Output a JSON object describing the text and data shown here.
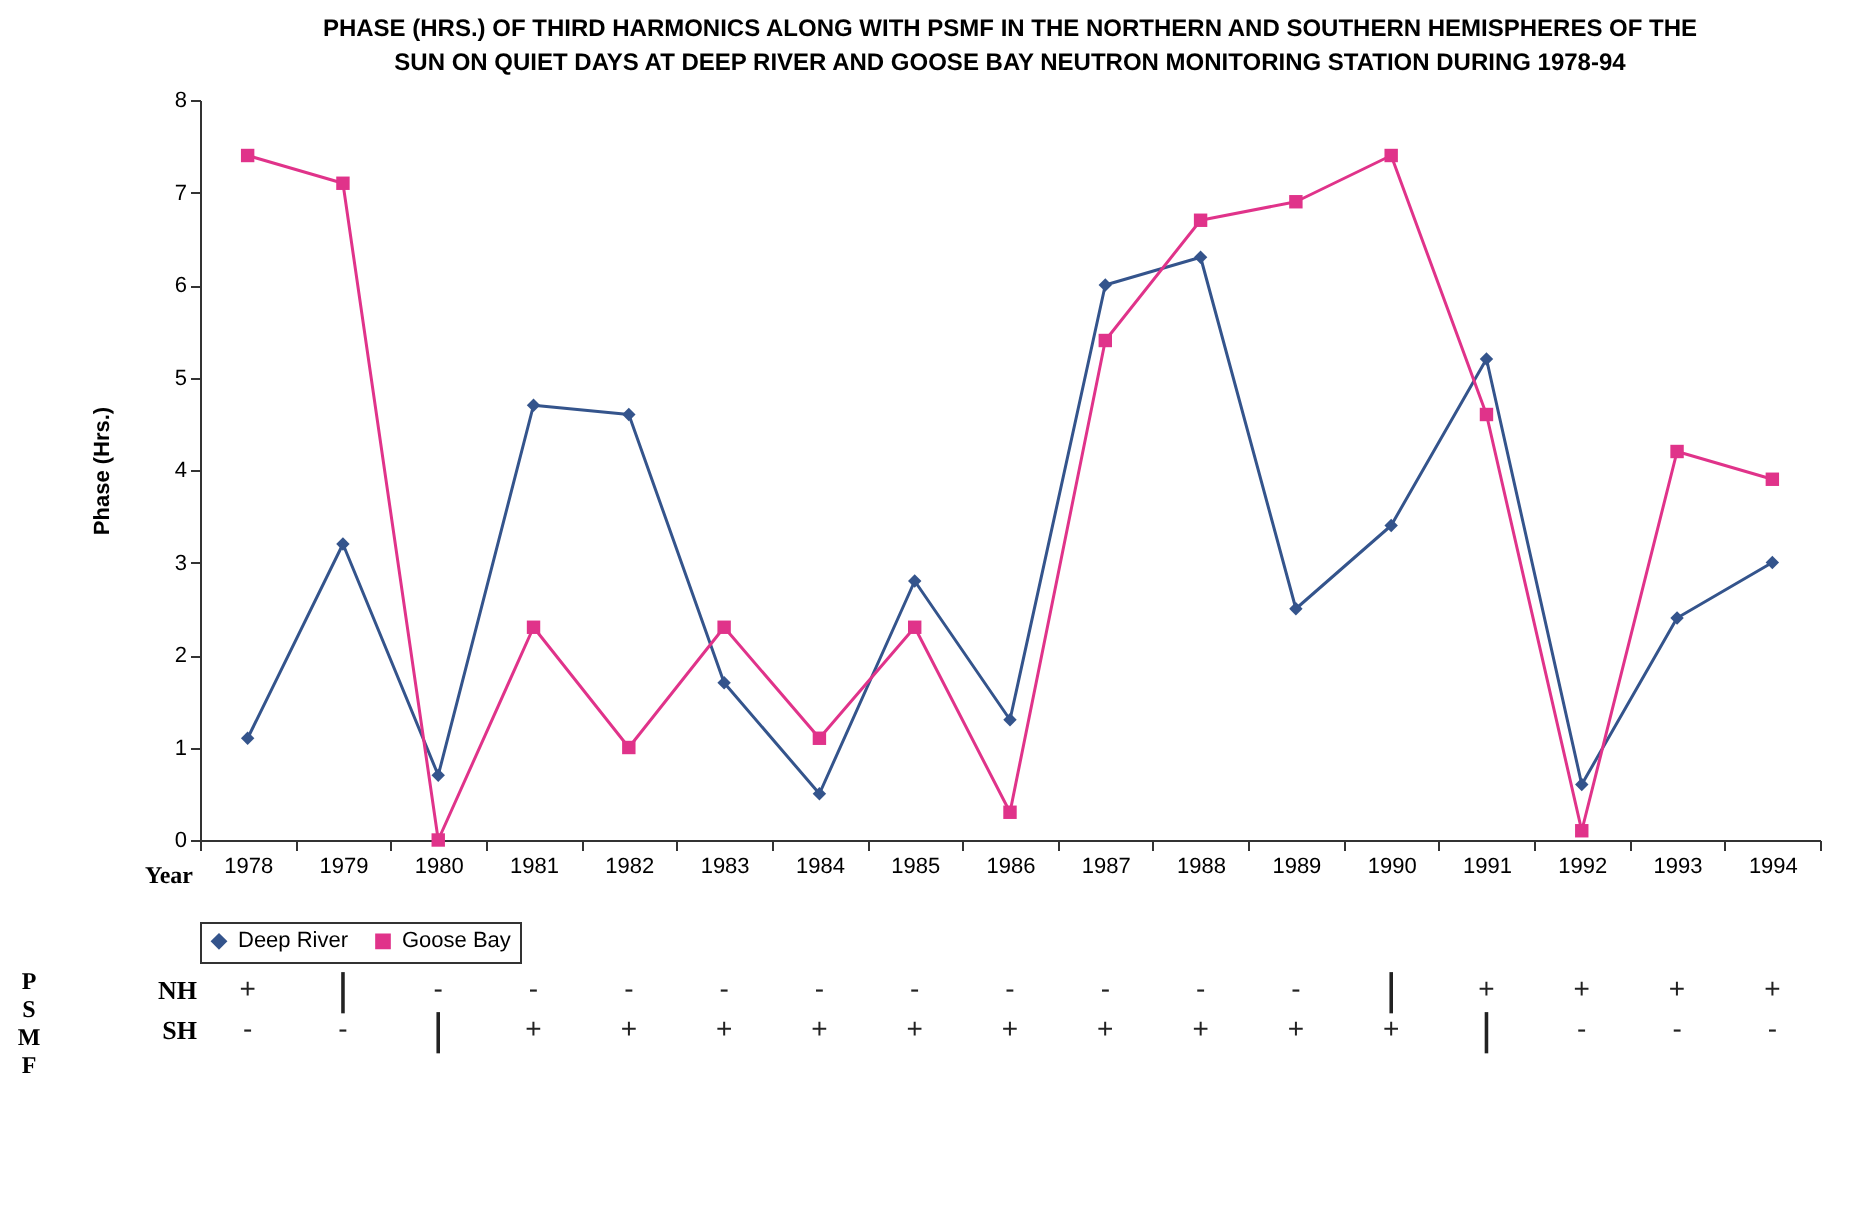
{
  "chart_data": {
    "type": "line",
    "title": "PHASE (HRS.) OF THIRD HARMONICS ALONG WITH PSMF IN THE NORTHERN AND SOUTHERN HEMISPHERES OF THE SUN ON QUIET DAYS AT DEEP RIVER AND GOOSE BAY NEUTRON MONITORING STATION DURING 1978-94",
    "xlabel": "Year",
    "ylabel": "Phase (Hrs.)",
    "categories": [
      "1978",
      "1979",
      "1980",
      "1981",
      "1982",
      "1983",
      "1984",
      "1985",
      "1986",
      "1987",
      "1988",
      "1989",
      "1990",
      "1991",
      "1992",
      "1993",
      "1994"
    ],
    "ylim": [
      0,
      8
    ],
    "yticks": [
      0,
      1,
      2,
      3,
      4,
      5,
      6,
      7,
      8
    ],
    "legend": "bottom",
    "line_style": "solid",
    "series": [
      {
        "name": "Deep River",
        "color": "#34548c",
        "marker": "diamond",
        "values": [
          1.1,
          3.2,
          0.7,
          4.7,
          4.6,
          1.7,
          0.5,
          2.8,
          1.3,
          6.0,
          6.3,
          2.5,
          3.4,
          5.2,
          0.6,
          2.4,
          3.0
        ]
      },
      {
        "name": "Goose Bay",
        "color": "#e0338a",
        "marker": "square",
        "values": [
          7.4,
          7.1,
          0.0,
          2.3,
          1.0,
          2.3,
          1.1,
          2.3,
          0.3,
          5.4,
          6.7,
          6.9,
          7.4,
          4.6,
          0.1,
          4.2,
          3.9
        ]
      }
    ],
    "annotations": [
      "PSMF",
      "NH",
      "+",
      "|",
      "-",
      "-",
      "-",
      "-",
      "-",
      "-",
      "-",
      "-",
      "-",
      "-",
      "|",
      "+",
      "+",
      "+",
      "+",
      "SH",
      "-",
      "-",
      "|",
      "+",
      "+",
      "+",
      "+",
      "+",
      "+",
      "+",
      "+",
      "+",
      "+",
      "|",
      "-",
      "-",
      "-"
    ]
  }
}
